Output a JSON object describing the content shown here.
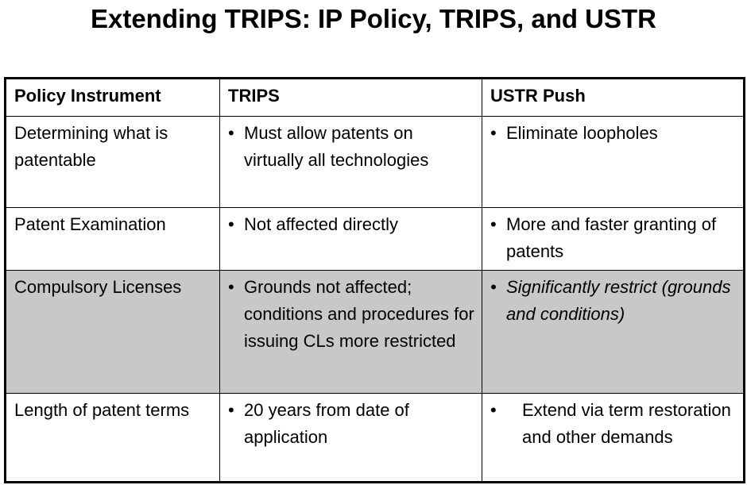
{
  "title": "Extending TRIPS: IP Policy, TRIPS, and USTR",
  "table": {
    "header": [
      "Policy Instrument",
      "TRIPS",
      "USTR Push"
    ],
    "rows": [
      [
        "Determining what is patentable",
        "Must allow patents on virtually all technologies",
        "Eliminate loopholes"
      ],
      [
        "Patent Examination",
        "Not affected directly",
        "More and faster granting of patents"
      ],
      [
        "Compulsory Licenses",
        "Grounds not affected; conditions and procedures for issuing CLs more restricted",
        "Significantly restrict (grounds and conditions)"
      ],
      [
        "Length of patent terms",
        "20 years from date of application",
        "Extend via term restoration and other demands"
      ]
    ]
  }
}
